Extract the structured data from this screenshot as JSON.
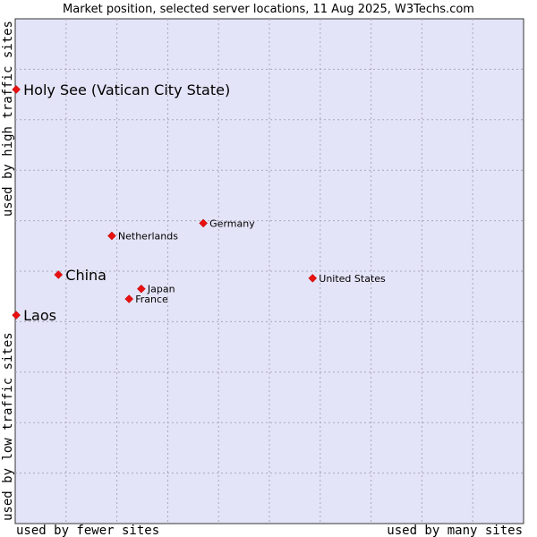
{
  "chart_data": {
    "type": "scatter",
    "title": "Market position, selected server locations, 11 Aug 2025, W3Techs.com",
    "xlabel_left": "used by fewer sites",
    "xlabel_right": "used by many sites",
    "ylabel_bottom": "used by low traffic sites",
    "ylabel_top": "used by high traffic sites",
    "xlim": [
      0,
      100
    ],
    "ylim": [
      0,
      100
    ],
    "grid": true,
    "colors": {
      "plot_bg": "#e4e4f8",
      "marker": "#e81010",
      "border": "#333333"
    },
    "points": [
      {
        "label": "Holy See (Vatican City State)",
        "x": 0.2,
        "y": 86,
        "highlight": true
      },
      {
        "label": "Germany",
        "x": 37,
        "y": 59.5,
        "highlight": false
      },
      {
        "label": "Netherlands",
        "x": 19,
        "y": 57,
        "highlight": false
      },
      {
        "label": "China",
        "x": 8.5,
        "y": 49.3,
        "highlight": true
      },
      {
        "label": "United States",
        "x": 58.5,
        "y": 48.6,
        "highlight": false
      },
      {
        "label": "Japan",
        "x": 24.8,
        "y": 46.5,
        "highlight": false
      },
      {
        "label": "France",
        "x": 22.4,
        "y": 44.5,
        "highlight": false
      },
      {
        "label": "Laos",
        "x": 0.2,
        "y": 41.3,
        "highlight": true
      }
    ]
  }
}
